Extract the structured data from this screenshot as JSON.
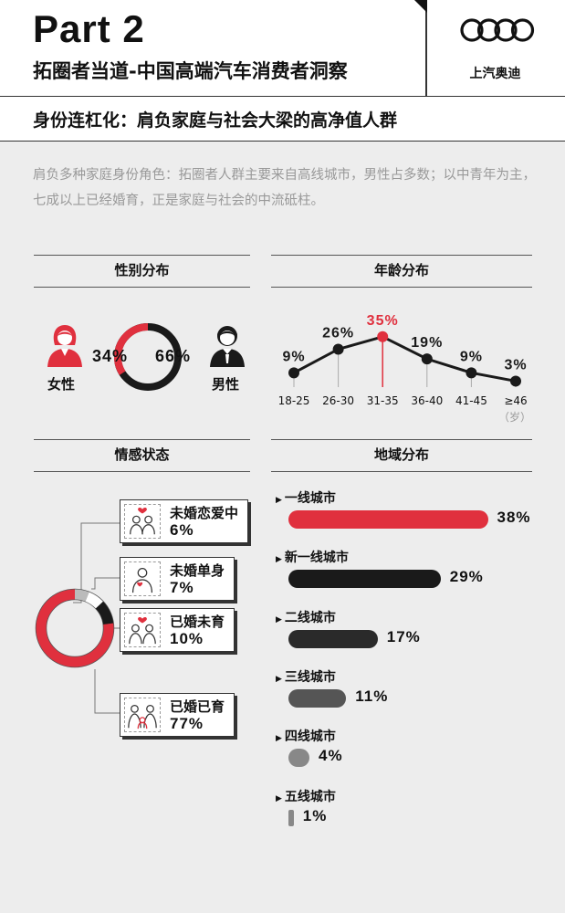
{
  "header": {
    "part_title": "Part 2",
    "subtitle": "拓圈者当道-中国高端汽车消费者洞察",
    "brand_name": "上汽奥迪"
  },
  "section_title": "身份连杠化：肩负家庭与社会大梁的高净值人群",
  "intro": "肩负多种家庭身份角色：拓圈者人群主要来自高线城市，男性占多数；以中青年为主，七成以上已经婚育，正是家庭与社会的中流砥柱。",
  "colors": {
    "accent": "#e0303e",
    "dark": "#1a1a1a",
    "gray": "#bbbbbb"
  },
  "chart_data": [
    {
      "type": "pie",
      "title": "性别分布",
      "labels": [
        "女性",
        "男性"
      ],
      "values": [
        34,
        66
      ],
      "value_labels": [
        "34%",
        "66%"
      ],
      "colors": [
        "#e0303e",
        "#1a1a1a"
      ]
    },
    {
      "type": "line",
      "title": "年龄分布",
      "categories": [
        "18-25",
        "26-30",
        "31-35",
        "36-40",
        "41-45",
        "≥46"
      ],
      "values": [
        9,
        26,
        35,
        19,
        9,
        3
      ],
      "value_labels": [
        "9%",
        "26%",
        "35%",
        "19%",
        "9%",
        "3%"
      ],
      "unit_label": "（岁）",
      "highlight_index": 2
    },
    {
      "type": "pie",
      "title": "情感状态",
      "labels": [
        "未婚恋爱中",
        "未婚单身",
        "已婚未育",
        "已婚已育"
      ],
      "values": [
        6,
        7,
        10,
        77
      ],
      "value_labels": [
        "6%",
        "7%",
        "10%",
        "77%"
      ],
      "colors": [
        "#bbbbbb",
        "#ffffff",
        "#1a1a1a",
        "#e0303e"
      ]
    },
    {
      "type": "bar",
      "title": "地域分布",
      "orientation": "horizontal",
      "categories": [
        "一线城市",
        "新一线城市",
        "二线城市",
        "三线城市",
        "四线城市",
        "五线城市"
      ],
      "values": [
        38,
        29,
        17,
        11,
        4,
        1
      ],
      "value_labels": [
        "38%",
        "29%",
        "17%",
        "11%",
        "4%",
        "1%"
      ],
      "colors": [
        "#e0303e",
        "#1a1a1a",
        "#2a2a2a",
        "#555555",
        "#888888",
        "#888888"
      ]
    }
  ]
}
